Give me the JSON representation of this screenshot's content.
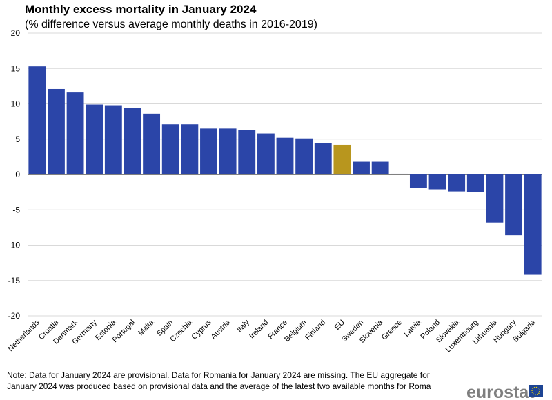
{
  "chart_data": {
    "type": "bar",
    "title": "Monthly excess mortality in January 2024",
    "subtitle": "(% difference versus average monthly deaths in 2016-2019)",
    "categories": [
      "Netherlands",
      "Croatia",
      "Denmark",
      "Germany",
      "Estonia",
      "Portugal",
      "Malta",
      "Spain",
      "Czechia",
      "Cyprus",
      "Austria",
      "Italy",
      "Ireland",
      "France",
      "Belgium",
      "Finland",
      "EU",
      "Sweden",
      "Slovenia",
      "Greece",
      "Latvia",
      "Poland",
      "Slovakia",
      "Luxembourg",
      "Lithuania",
      "Hungary",
      "Bulgaria"
    ],
    "values": [
      15.3,
      12.1,
      11.6,
      9.9,
      9.8,
      9.4,
      8.6,
      7.1,
      7.1,
      6.5,
      6.5,
      6.3,
      5.8,
      5.2,
      5.1,
      4.4,
      4.2,
      1.8,
      1.8,
      0.1,
      -1.9,
      -2.1,
      -2.4,
      -2.5,
      -6.8,
      -8.6,
      -14.2
    ],
    "colors": [
      "#2b45a8",
      "#2b45a8",
      "#2b45a8",
      "#2b45a8",
      "#2b45a8",
      "#2b45a8",
      "#2b45a8",
      "#2b45a8",
      "#2b45a8",
      "#2b45a8",
      "#2b45a8",
      "#2b45a8",
      "#2b45a8",
      "#2b45a8",
      "#2b45a8",
      "#2b45a8",
      "#b8961e",
      "#2b45a8",
      "#2b45a8",
      "#2b45a8",
      "#2b45a8",
      "#2b45a8",
      "#2b45a8",
      "#2b45a8",
      "#2b45a8",
      "#2b45a8",
      "#2b45a8"
    ],
    "ylim": [
      -20,
      20
    ],
    "yticks": [
      -20,
      -15,
      -10,
      -5,
      0,
      5,
      10,
      15,
      20
    ],
    "grid": true,
    "note": [
      "Note: Data for January 2024 are provisional. Data for Romania for January 2024 are missing. The EU aggregate for",
      "January 2024 was produced based on provisional data and the average of the latest two available months for Roma"
    ],
    "logo": "eurostat"
  }
}
